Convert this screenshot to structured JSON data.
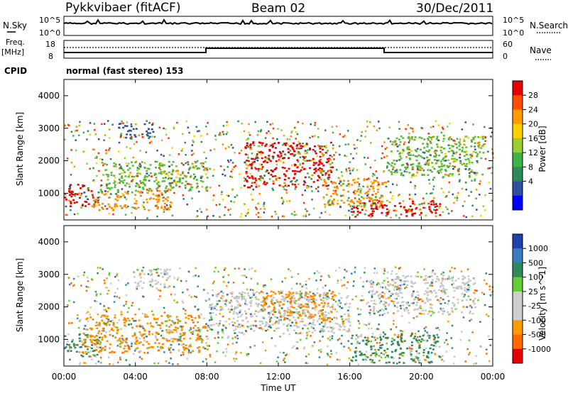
{
  "header": {
    "radar": "Pykkvibaer (fitACF)",
    "beam": "Beam 02",
    "date": "30/Dec/2011"
  },
  "status_panel": {
    "nsky_label": "N.Sky",
    "nsky_ticks": [
      "10^5",
      "10^0"
    ],
    "nsearch_label": "N.Search",
    "nsearch_ticks": [
      "10^5",
      "10^0"
    ],
    "freq_label_1": "Freq.",
    "freq_label_2": "[MHz]",
    "freq_ticks": [
      "18",
      "8"
    ],
    "nave_label": "Nave",
    "nave_ticks": [
      "60",
      "0"
    ],
    "cpid_label": "CPID",
    "cpid_text": "normal (fast stereo) 153"
  },
  "chart_data": [
    {
      "type": "heatmap",
      "panel": "power",
      "ylabel": "Slant Range [km]",
      "ylim": [
        180,
        4500
      ],
      "y_ticks": [
        1000,
        2000,
        3000,
        4000
      ],
      "colorbar_label": "Power [dB]",
      "colorbar_ticks": [
        "28",
        "24",
        "20",
        "16",
        "12",
        "8",
        "4"
      ],
      "colorbar_colors": [
        "#e60000",
        "#ff4d00",
        "#ff9a00",
        "#ffd000",
        "#9acd32",
        "#3cb44b",
        "#2e8b57",
        "#2f4fa0",
        "#0000ff"
      ],
      "regions": [
        {
          "t": [
            0.0,
            1.5
          ],
          "r": [
            600,
            1300
          ],
          "level": "red"
        },
        {
          "t": [
            1.5,
            6.0
          ],
          "r": [
            500,
            1100
          ],
          "level": "orange"
        },
        {
          "t": [
            2.0,
            8.0
          ],
          "r": [
            1100,
            2000
          ],
          "level": "green"
        },
        {
          "t": [
            3.0,
            5.0
          ],
          "r": [
            2700,
            3200
          ],
          "level": "blue"
        },
        {
          "t": [
            10.0,
            15.0
          ],
          "r": [
            1200,
            2600
          ],
          "level": "red"
        },
        {
          "t": [
            14.5,
            18.0
          ],
          "r": [
            600,
            1500
          ],
          "level": "orange"
        },
        {
          "t": [
            16.0,
            21.0
          ],
          "r": [
            300,
            800
          ],
          "level": "red"
        },
        {
          "t": [
            18.0,
            23.5
          ],
          "r": [
            1500,
            2800
          ],
          "level": "green"
        }
      ]
    },
    {
      "type": "heatmap",
      "panel": "velocity",
      "ylabel": "Slant Range [km]",
      "ylim": [
        180,
        4500
      ],
      "y_ticks": [
        1000,
        2000,
        3000,
        4000
      ],
      "colorbar_label": "Velocity [m s^-1]",
      "colorbar_ticks": [
        "1000",
        "500",
        "100",
        "25",
        "-25",
        "-100",
        "-500",
        "-1000"
      ],
      "colorbar_colors": [
        "#2040b0",
        "#3a7fbf",
        "#2e8b57",
        "#66cc33",
        "#cfcfcf",
        "#cfcfcf",
        "#ff9a00",
        "#ff6a00",
        "#e60000"
      ],
      "regions": [
        {
          "t": [
            0.0,
            2.0
          ],
          "r": [
            500,
            1200
          ],
          "level": "teal"
        },
        {
          "t": [
            1.0,
            8.0
          ],
          "r": [
            600,
            1800
          ],
          "level": "orange"
        },
        {
          "t": [
            4.0,
            6.0
          ],
          "r": [
            2600,
            3200
          ],
          "level": "grey"
        },
        {
          "t": [
            8.0,
            16.0
          ],
          "r": [
            1200,
            2500
          ],
          "level": "grey"
        },
        {
          "t": [
            11.0,
            15.0
          ],
          "r": [
            1600,
            2500
          ],
          "level": "orange"
        },
        {
          "t": [
            16.0,
            21.0
          ],
          "r": [
            300,
            1200
          ],
          "level": "teal"
        },
        {
          "t": [
            17.0,
            23.0
          ],
          "r": [
            1800,
            3000
          ],
          "level": "grey"
        }
      ]
    }
  ],
  "x_axis": {
    "ticks": [
      "00:00",
      "04:00",
      "08:00",
      "12:00",
      "16:00",
      "20:00",
      "00:00"
    ],
    "label": "Time UT"
  }
}
